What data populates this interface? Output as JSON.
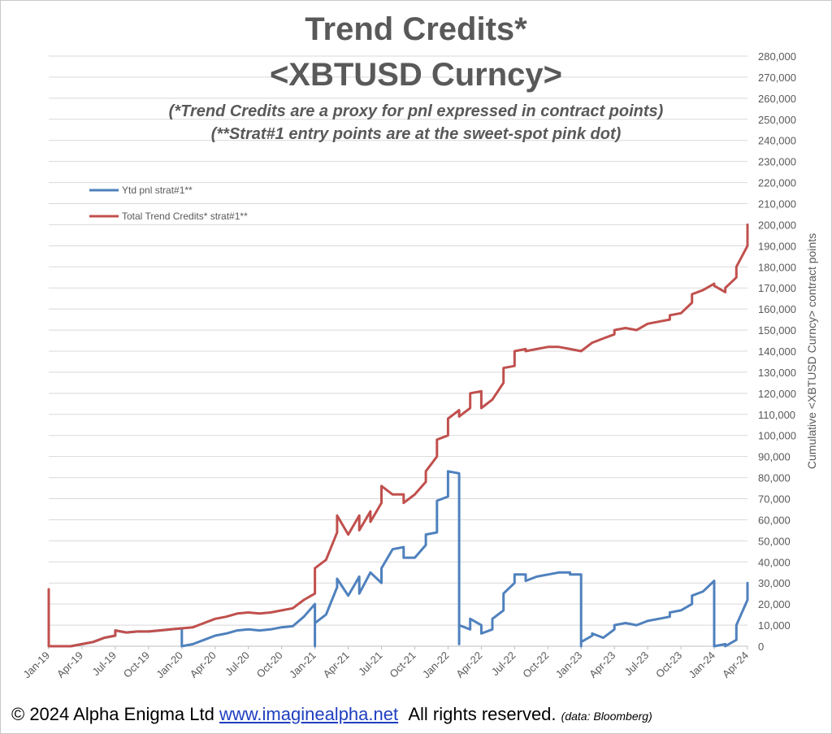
{
  "title_line1": "Trend Credits*",
  "title_line2": "<XBTUSD Curncy>",
  "subtitle_line1": "(*Trend Credits are a proxy for pnl expressed in contract points)",
  "subtitle_line2": "(**Strat#1 entry points are at the sweet-spot pink dot)",
  "footer": {
    "copyright": "© 2024 Alpha Enigma Ltd",
    "link": "www.imaginealpha.net",
    "rights": "All rights reserved",
    "dot": ".",
    "source": "(data: Bloomberg)"
  },
  "chart_data": {
    "type": "line",
    "ylabel": "Cumulative <XBTUSD Curncy>  contract points",
    "ylim": [
      0,
      280000
    ],
    "y_ticks": [
      "0",
      "10,000",
      "20,000",
      "30,000",
      "40,000",
      "50,000",
      "60,000",
      "70,000",
      "80,000",
      "90,000",
      "100,000",
      "110,000",
      "120,000",
      "130,000",
      "140,000",
      "150,000",
      "160,000",
      "170,000",
      "180,000",
      "190,000",
      "200,000",
      "210,000",
      "220,000",
      "230,000",
      "240,000",
      "250,000",
      "260,000",
      "270,000",
      "280,000"
    ],
    "x_ticks": [
      "Jan-19",
      "Apr-19",
      "Jul-19",
      "Oct-19",
      "Jan-20",
      "Apr-20",
      "Jul-20",
      "Oct-20",
      "Jan-21",
      "Apr-21",
      "Jul-21",
      "Oct-21",
      "Jan-22",
      "Apr-22",
      "Jul-22",
      "Oct-22",
      "Jan-23",
      "Apr-23",
      "Jul-23",
      "Oct-23",
      "Jan-24",
      "Apr-24"
    ],
    "x_range": [
      "2019-01",
      "2024-04"
    ],
    "grid": true,
    "legend_position": "top-left",
    "series": [
      {
        "name": "Ytd   pnl   strat#1**",
        "color": "#4f81bd",
        "points": [
          [
            "2019-01",
            0
          ],
          [
            "2019-03",
            0
          ],
          [
            "2019-04",
            1000
          ],
          [
            "2019-05",
            2000
          ],
          [
            "2019-06",
            4000
          ],
          [
            "2019-07",
            5000
          ],
          [
            "2019-07",
            7500
          ],
          [
            "2019-08",
            6500
          ],
          [
            "2019-09",
            7000
          ],
          [
            "2019-10",
            7000
          ],
          [
            "2019-11",
            7500
          ],
          [
            "2019-12",
            8000
          ],
          [
            "2020-01",
            8500
          ],
          [
            "2020-01",
            0
          ],
          [
            "2020-02",
            1000
          ],
          [
            "2020-03",
            3000
          ],
          [
            "2020-04",
            5000
          ],
          [
            "2020-05",
            6000
          ],
          [
            "2020-06",
            7500
          ],
          [
            "2020-07",
            8000
          ],
          [
            "2020-08",
            7500
          ],
          [
            "2020-09",
            8000
          ],
          [
            "2020-10",
            9000
          ],
          [
            "2020-11",
            9500
          ],
          [
            "2020-12",
            14000
          ],
          [
            "2021-01",
            20000
          ],
          [
            "2021-01",
            0
          ],
          [
            "2021-01",
            11000
          ],
          [
            "2021-02",
            15000
          ],
          [
            "2021-03",
            28000
          ],
          [
            "2021-03",
            32000
          ],
          [
            "2021-04",
            24000
          ],
          [
            "2021-05",
            33000
          ],
          [
            "2021-05",
            25000
          ],
          [
            "2021-06",
            35000
          ],
          [
            "2021-07",
            30000
          ],
          [
            "2021-07",
            37000
          ],
          [
            "2021-08",
            46000
          ],
          [
            "2021-09",
            47000
          ],
          [
            "2021-09",
            42000
          ],
          [
            "2021-10",
            42000
          ],
          [
            "2021-11",
            48000
          ],
          [
            "2021-11",
            53000
          ],
          [
            "2021-12",
            54000
          ],
          [
            "2021-12",
            61000
          ],
          [
            "2021-12",
            69000
          ],
          [
            "2022-01",
            71000
          ],
          [
            "2022-01",
            78000
          ],
          [
            "2022-01",
            83000
          ],
          [
            "2022-02",
            82000
          ],
          [
            "2022-02",
            1000
          ],
          [
            "2022-02",
            5000
          ],
          [
            "2022-02",
            10000
          ],
          [
            "2022-03",
            8000
          ],
          [
            "2022-03",
            13000
          ],
          [
            "2022-04",
            10000
          ],
          [
            "2022-04",
            6000
          ],
          [
            "2022-05",
            8000
          ],
          [
            "2022-05",
            13000
          ],
          [
            "2022-06",
            17000
          ],
          [
            "2022-06",
            25000
          ],
          [
            "2022-07",
            30000
          ],
          [
            "2022-07",
            34000
          ],
          [
            "2022-08",
            34000
          ],
          [
            "2022-08",
            31000
          ],
          [
            "2022-09",
            33000
          ],
          [
            "2022-10",
            34000
          ],
          [
            "2022-11",
            35000
          ],
          [
            "2022-12",
            35000
          ],
          [
            "2022-12",
            34000
          ],
          [
            "2023-01",
            34000
          ],
          [
            "2023-01",
            33000
          ],
          [
            "2023-01",
            0
          ],
          [
            "2023-01",
            2000
          ],
          [
            "2023-02",
            5000
          ],
          [
            "2023-02",
            6000
          ],
          [
            "2023-03",
            4000
          ],
          [
            "2023-04",
            8000
          ],
          [
            "2023-04",
            10000
          ],
          [
            "2023-05",
            11000
          ],
          [
            "2023-06",
            10000
          ],
          [
            "2023-07",
            12000
          ],
          [
            "2023-08",
            13000
          ],
          [
            "2023-09",
            14000
          ],
          [
            "2023-09",
            16000
          ],
          [
            "2023-10",
            17000
          ],
          [
            "2023-11",
            20000
          ],
          [
            "2023-11",
            24000
          ],
          [
            "2023-12",
            26000
          ],
          [
            "2024-01",
            31000
          ],
          [
            "2024-01",
            30000
          ],
          [
            "2024-01",
            0
          ],
          [
            "2024-02",
            1000
          ],
          [
            "2024-02",
            0
          ],
          [
            "2024-03",
            3000
          ],
          [
            "2024-03",
            10000
          ],
          [
            "2024-04",
            22000
          ],
          [
            "2024-04",
            30000
          ],
          [
            "2024-04",
            29000
          ]
        ]
      },
      {
        "name": "Total Trend Credits*   strat#1**",
        "color": "#c0504d",
        "points": [
          [
            "2019-01",
            27000
          ],
          [
            "2019-01",
            0
          ],
          [
            "2019-03",
            0
          ],
          [
            "2019-04",
            1000
          ],
          [
            "2019-05",
            2000
          ],
          [
            "2019-06",
            4000
          ],
          [
            "2019-07",
            5000
          ],
          [
            "2019-07",
            7500
          ],
          [
            "2019-08",
            6500
          ],
          [
            "2019-09",
            7000
          ],
          [
            "2019-10",
            7000
          ],
          [
            "2019-11",
            7500
          ],
          [
            "2019-12",
            8000
          ],
          [
            "2020-01",
            8500
          ],
          [
            "2020-02",
            9000
          ],
          [
            "2020-03",
            11000
          ],
          [
            "2020-04",
            13000
          ],
          [
            "2020-05",
            14000
          ],
          [
            "2020-06",
            15500
          ],
          [
            "2020-07",
            16000
          ],
          [
            "2020-08",
            15500
          ],
          [
            "2020-09",
            16000
          ],
          [
            "2020-10",
            17000
          ],
          [
            "2020-11",
            18000
          ],
          [
            "2020-12",
            22000
          ],
          [
            "2021-01",
            25000
          ],
          [
            "2021-01",
            37000
          ],
          [
            "2021-02",
            41000
          ],
          [
            "2021-03",
            54000
          ],
          [
            "2021-03",
            62000
          ],
          [
            "2021-04",
            53000
          ],
          [
            "2021-05",
            62000
          ],
          [
            "2021-05",
            55000
          ],
          [
            "2021-06",
            64000
          ],
          [
            "2021-06",
            59000
          ],
          [
            "2021-07",
            68000
          ],
          [
            "2021-07",
            76000
          ],
          [
            "2021-08",
            72000
          ],
          [
            "2021-09",
            72000
          ],
          [
            "2021-09",
            68000
          ],
          [
            "2021-10",
            72000
          ],
          [
            "2021-11",
            78000
          ],
          [
            "2021-11",
            83000
          ],
          [
            "2021-12",
            90000
          ],
          [
            "2021-12",
            98000
          ],
          [
            "2022-01",
            100000
          ],
          [
            "2022-01",
            108000
          ],
          [
            "2022-02",
            112000
          ],
          [
            "2022-02",
            109000
          ],
          [
            "2022-03",
            113000
          ],
          [
            "2022-03",
            120000
          ],
          [
            "2022-04",
            121000
          ],
          [
            "2022-04",
            113000
          ],
          [
            "2022-05",
            117000
          ],
          [
            "2022-06",
            125000
          ],
          [
            "2022-06",
            132000
          ],
          [
            "2022-07",
            133000
          ],
          [
            "2022-07",
            140000
          ],
          [
            "2022-08",
            141000
          ],
          [
            "2022-08",
            140000
          ],
          [
            "2022-09",
            141000
          ],
          [
            "2022-10",
            142000
          ],
          [
            "2022-11",
            142000
          ],
          [
            "2022-12",
            141000
          ],
          [
            "2023-01",
            140000
          ],
          [
            "2023-01",
            140000
          ],
          [
            "2023-02",
            144000
          ],
          [
            "2023-03",
            146000
          ],
          [
            "2023-04",
            148000
          ],
          [
            "2023-04",
            150000
          ],
          [
            "2023-05",
            151000
          ],
          [
            "2023-06",
            150000
          ],
          [
            "2023-07",
            153000
          ],
          [
            "2023-08",
            154000
          ],
          [
            "2023-09",
            155000
          ],
          [
            "2023-09",
            157000
          ],
          [
            "2023-10",
            158000
          ],
          [
            "2023-11",
            163000
          ],
          [
            "2023-11",
            167000
          ],
          [
            "2023-12",
            169000
          ],
          [
            "2024-01",
            172000
          ],
          [
            "2024-01",
            171000
          ],
          [
            "2024-02",
            168000
          ],
          [
            "2024-02",
            170000
          ],
          [
            "2024-03",
            175000
          ],
          [
            "2024-03",
            180000
          ],
          [
            "2024-04",
            190000
          ],
          [
            "2024-04",
            199000
          ],
          [
            "2024-04",
            196000
          ],
          [
            "2024-04",
            200000
          ]
        ]
      }
    ]
  }
}
